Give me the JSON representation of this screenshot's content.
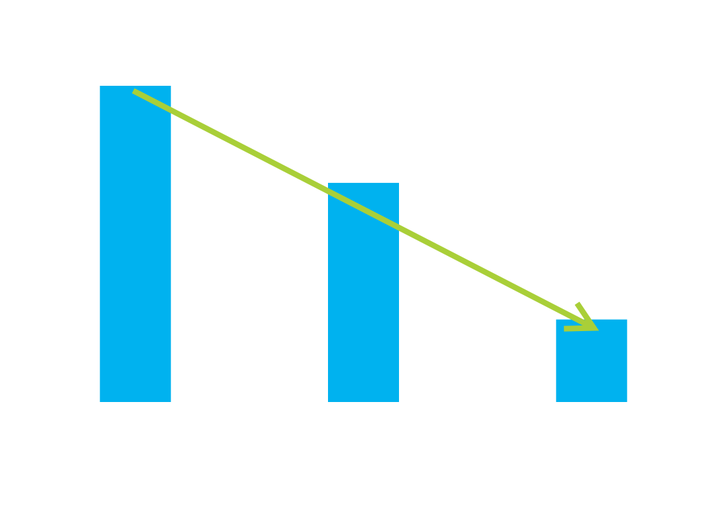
{
  "chart_data": {
    "type": "bar",
    "categories": [
      "",
      "",
      ""
    ],
    "values": [
      100,
      69.3,
      26.1
    ],
    "ylim": [
      0,
      100
    ],
    "grid": false,
    "legend": "none",
    "bar_color": "#00B2EF",
    "trend_arrow": {
      "direction": "down",
      "color": "#A9CF38"
    }
  }
}
